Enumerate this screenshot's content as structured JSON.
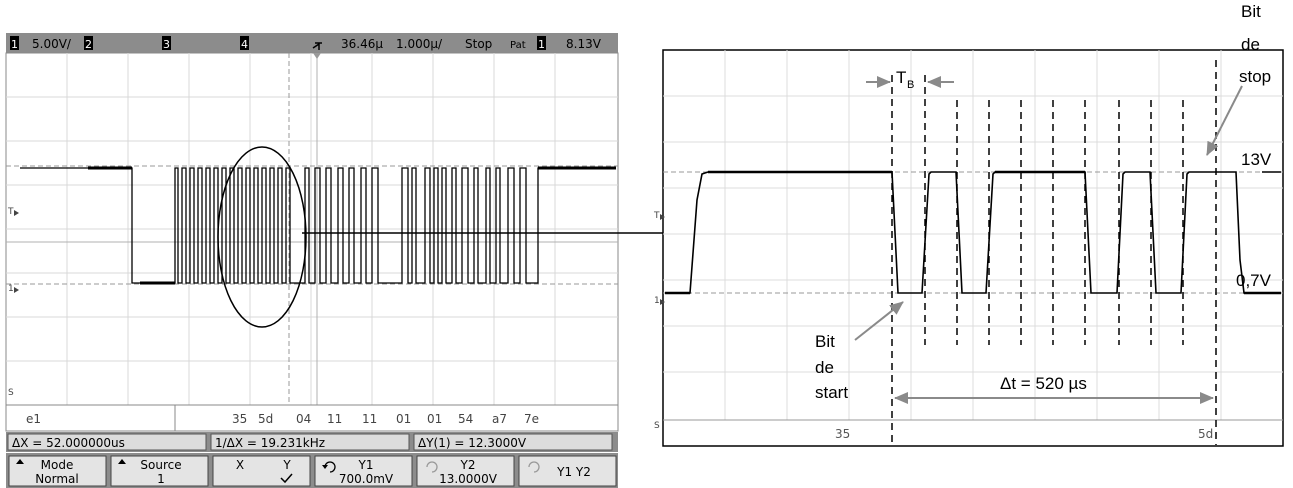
{
  "scope": {
    "header": {
      "ch1_num": "1",
      "ch1_scale": "5.00V/",
      "ch2_num": "2",
      "ch3_num": "3",
      "ch4_num": "4",
      "time_delay": "36.46µ",
      "time_scale": "1.000µ/",
      "run_state": "Stop",
      "trigger_type": "Pat",
      "trigger_src": "1",
      "trigger_level": "8.13V"
    },
    "markers": {
      "trig": "T",
      "ground": "1",
      "serial": "S"
    },
    "decode": {
      "label": "e1",
      "bytes": [
        "35",
        "5d",
        "04",
        "11",
        "11",
        "01",
        "01",
        "54",
        "a7",
        "7e"
      ]
    },
    "measurements": {
      "delta_x": "ΔX = 52.000000us",
      "inv_delta_x": "1/ΔX = 19.231kHz",
      "delta_y": "ΔY(1) = 12.3000V"
    },
    "softkeys": [
      {
        "line1": "Mode",
        "line2": "Normal"
      },
      {
        "line1": "Source",
        "line2": "1"
      },
      {
        "line1": "X",
        "line2": "Y"
      },
      {
        "line1": "Y1",
        "line2": "700.0mV"
      },
      {
        "line1": "Y2",
        "line2": "13.0000V"
      },
      {
        "line1": "Y1 Y2",
        "line2": ""
      }
    ]
  },
  "zoom": {
    "bit_stop": [
      "Bit",
      "de",
      "stop"
    ],
    "bit_start": [
      "Bit",
      "de",
      "start"
    ],
    "tb_main": "T",
    "tb_sub": "B",
    "level_high": "13V",
    "level_low": "0,7V",
    "delta_t": "Δt = 520 µs",
    "decode_bytes": [
      "35",
      "5d"
    ],
    "markers": {
      "trig": "T",
      "ground": "1",
      "serial": "S"
    }
  }
}
